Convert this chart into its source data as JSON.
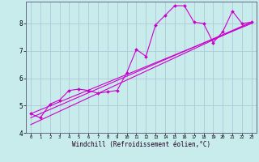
{
  "xlabel": "Windchill (Refroidissement éolien,°C)",
  "background_color": "#c8ecec",
  "grid_color": "#b0c8d8",
  "line_color": "#cc00cc",
  "xlim": [
    -0.5,
    23.5
  ],
  "ylim": [
    4.0,
    8.8
  ],
  "yticks": [
    4,
    5,
    6,
    7,
    8
  ],
  "xticks": [
    0,
    1,
    2,
    3,
    4,
    5,
    6,
    7,
    8,
    9,
    10,
    11,
    12,
    13,
    14,
    15,
    16,
    17,
    18,
    19,
    20,
    21,
    22,
    23
  ],
  "line1_x": [
    0,
    1,
    2,
    3,
    4,
    5,
    6,
    7,
    8,
    9,
    10,
    11,
    12,
    13,
    14,
    15,
    16,
    17,
    18,
    19,
    20,
    21,
    22,
    23
  ],
  "line1_y": [
    4.7,
    4.55,
    5.05,
    5.2,
    5.55,
    5.6,
    5.55,
    5.45,
    5.5,
    5.55,
    6.2,
    7.05,
    6.8,
    7.95,
    8.3,
    8.65,
    8.65,
    8.05,
    8.0,
    7.3,
    7.7,
    8.45,
    8.0,
    8.05
  ],
  "fit1_x": [
    0,
    23
  ],
  "fit1_y": [
    4.55,
    8.05
  ],
  "fit2_x": [
    0,
    23
  ],
  "fit2_y": [
    4.3,
    8.05
  ],
  "fit3_x": [
    0,
    23
  ],
  "fit3_y": [
    4.7,
    8.0
  ]
}
